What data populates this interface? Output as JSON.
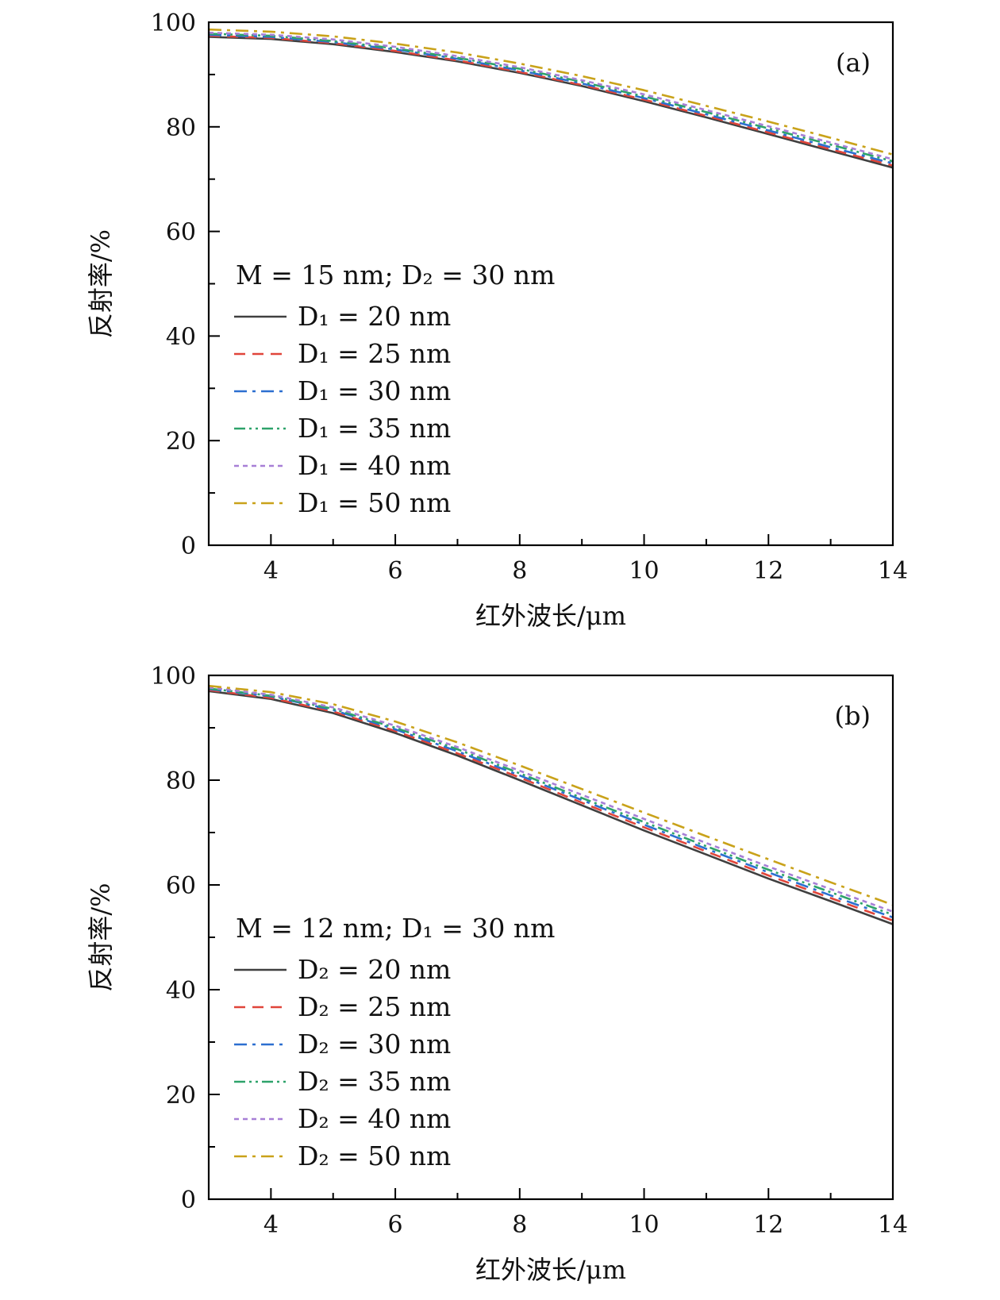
{
  "chart_data": [
    {
      "type": "line",
      "panel_label": "(a)",
      "xlabel": "红外波长/μm",
      "ylabel": "反射率/%",
      "xlim": [
        3,
        14
      ],
      "ylim": [
        0,
        100
      ],
      "xticks": [
        4,
        6,
        8,
        10,
        12,
        14
      ],
      "yticks": [
        0,
        20,
        40,
        60,
        80,
        100
      ],
      "legend_title": "M = 15 nm; D₂ = 30 nm",
      "legend_position": "left",
      "x": [
        3,
        4,
        5,
        6,
        7,
        8,
        9,
        10,
        11,
        12,
        13,
        14
      ],
      "series": [
        {
          "name": "D₁ = 20 nm",
          "color": "#404040",
          "dash": "solid",
          "values": [
            97.2,
            96.8,
            95.8,
            94.3,
            92.5,
            90.3,
            87.8,
            84.9,
            81.8,
            78.6,
            75.4,
            72.2
          ]
        },
        {
          "name": "D₁ = 25 nm",
          "color": "#e0453a",
          "dash": "dash",
          "values": [
            97.4,
            97.0,
            96.0,
            94.5,
            92.7,
            90.5,
            88.0,
            85.2,
            82.1,
            78.9,
            75.7,
            72.6
          ]
        },
        {
          "name": "D₁ = 30 nm",
          "color": "#2c6fd0",
          "dash": "dashdot",
          "values": [
            97.6,
            97.2,
            96.2,
            94.8,
            93.0,
            90.8,
            88.3,
            85.5,
            82.4,
            79.3,
            76.1,
            73.0
          ]
        },
        {
          "name": "D₁ = 35 nm",
          "color": "#2ea36a",
          "dash": "dashdotdot",
          "values": [
            97.8,
            97.4,
            96.4,
            95.0,
            93.2,
            91.1,
            88.6,
            85.8,
            82.8,
            79.7,
            76.6,
            73.4
          ]
        },
        {
          "name": "D₁ = 40 nm",
          "color": "#a77fd6",
          "dash": "shortdash",
          "values": [
            98.0,
            97.6,
            96.7,
            95.3,
            93.5,
            91.4,
            88.9,
            86.2,
            83.2,
            80.1,
            77.0,
            73.8
          ]
        },
        {
          "name": "D₁ = 50 nm",
          "color": "#c9a21a",
          "dash": "dashdot",
          "values": [
            98.6,
            98.2,
            97.3,
            95.9,
            94.2,
            92.1,
            89.7,
            87.0,
            84.0,
            81.0,
            77.9,
            74.7
          ]
        }
      ]
    },
    {
      "type": "line",
      "panel_label": "(b)",
      "xlabel": "红外波长/μm",
      "ylabel": "反射率/%",
      "xlim": [
        3,
        14
      ],
      "ylim": [
        0,
        100
      ],
      "xticks": [
        4,
        6,
        8,
        10,
        12,
        14
      ],
      "yticks": [
        0,
        20,
        40,
        60,
        80,
        100
      ],
      "legend_title": "M = 12 nm; D₁ = 30 nm",
      "legend_position": "left",
      "x": [
        3,
        4,
        5,
        6,
        7,
        8,
        9,
        10,
        11,
        12,
        13,
        14
      ],
      "series": [
        {
          "name": "D₂ = 20 nm",
          "color": "#404040",
          "dash": "solid",
          "values": [
            97.0,
            95.5,
            92.8,
            89.0,
            84.7,
            80.0,
            75.2,
            70.4,
            65.8,
            61.2,
            56.9,
            52.5
          ]
        },
        {
          "name": "D₂ = 25 nm",
          "color": "#e0453a",
          "dash": "dash",
          "values": [
            97.2,
            95.7,
            93.1,
            89.4,
            85.1,
            80.5,
            75.7,
            71.0,
            66.4,
            61.8,
            57.5,
            53.2
          ]
        },
        {
          "name": "D₂ = 30 nm",
          "color": "#2c6fd0",
          "dash": "dashdot",
          "values": [
            97.4,
            96.0,
            93.4,
            89.7,
            85.5,
            80.9,
            76.2,
            71.5,
            66.9,
            62.4,
            58.0,
            53.8
          ]
        },
        {
          "name": "D₂ = 35 nm",
          "color": "#2ea36a",
          "dash": "dashdotdot",
          "values": [
            97.5,
            96.1,
            93.6,
            90.0,
            85.9,
            81.3,
            76.6,
            72.0,
            67.4,
            62.9,
            58.6,
            54.3
          ]
        },
        {
          "name": "D₂ = 40 nm",
          "color": "#a77fd6",
          "dash": "shortdash",
          "values": [
            97.7,
            96.3,
            93.9,
            90.4,
            86.3,
            81.8,
            77.2,
            72.6,
            68.0,
            63.5,
            59.2,
            54.9
          ]
        },
        {
          "name": "D₂ = 50 nm",
          "color": "#c9a21a",
          "dash": "dashdot",
          "values": [
            98.0,
            96.8,
            94.5,
            91.2,
            87.2,
            82.8,
            78.3,
            73.8,
            69.3,
            64.9,
            60.5,
            56.2
          ]
        }
      ]
    }
  ]
}
